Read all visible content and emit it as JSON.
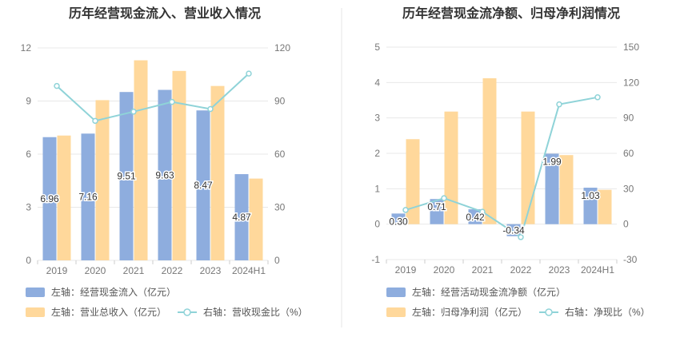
{
  "colors": {
    "bar1": "#8eadde",
    "bar2": "#ffd89b",
    "line": "#8fd3d8",
    "grid": "#e8e8e8",
    "divider": "#e6e6e6"
  },
  "chart_data": [
    {
      "type": "bar",
      "title": "历年经营现金流入、营业收入情况",
      "categories": [
        "2019",
        "2020",
        "2021",
        "2022",
        "2023",
        "2024H1"
      ],
      "y_left": {
        "min": 0,
        "max": 12,
        "ticks": [
          "0",
          "3",
          "6",
          "9",
          "12"
        ]
      },
      "y_right": {
        "min": 0,
        "max": 120,
        "ticks": [
          "0",
          "30",
          "60",
          "90",
          "120"
        ]
      },
      "series": [
        {
          "name": "左轴：经营现金流入（亿元）",
          "type": "bar",
          "axis": "left",
          "values": [
            6.96,
            7.16,
            9.51,
            9.63,
            8.47,
            4.87
          ],
          "labels": [
            "6.96",
            "7.16",
            "9.51",
            "9.63",
            "8.47",
            "4.87"
          ]
        },
        {
          "name": "左轴：营业总收入（亿元）",
          "type": "bar",
          "axis": "left",
          "values": [
            7.05,
            9.05,
            11.3,
            10.7,
            9.85,
            4.62
          ]
        },
        {
          "name": "右轴：营收现金比（%）",
          "type": "line",
          "axis": "right",
          "values": [
            98.5,
            78.8,
            84.0,
            89.5,
            85.5,
            105.5
          ]
        }
      ]
    },
    {
      "type": "bar",
      "title": "历年经营现金流净额、归母净利润情况",
      "categories": [
        "2019",
        "2020",
        "2021",
        "2022",
        "2023",
        "2024H1"
      ],
      "y_left": {
        "min": -1,
        "max": 5,
        "ticks": [
          "-1",
          "0",
          "1",
          "2",
          "3",
          "4",
          "5"
        ]
      },
      "y_right": {
        "min": -30,
        "max": 150,
        "ticks": [
          "-30",
          "0",
          "30",
          "60",
          "90",
          "120",
          "150"
        ]
      },
      "series": [
        {
          "name": "左轴：经营活动现金流净额（亿元）",
          "type": "bar",
          "axis": "left",
          "values": [
            0.3,
            0.71,
            0.42,
            -0.34,
            1.99,
            1.03
          ],
          "labels": [
            "0.30",
            "0.71",
            "0.42",
            "-0.34",
            "1.99",
            "1.03"
          ]
        },
        {
          "name": "左轴：归母净利润（亿元）",
          "type": "bar",
          "axis": "left",
          "values": [
            2.4,
            3.18,
            4.12,
            3.18,
            1.95,
            0.97
          ]
        },
        {
          "name": "右轴：净现比（%）",
          "type": "line",
          "axis": "right",
          "values": [
            12.0,
            22.0,
            10.5,
            -11.0,
            101.5,
            107.5
          ]
        }
      ]
    }
  ]
}
